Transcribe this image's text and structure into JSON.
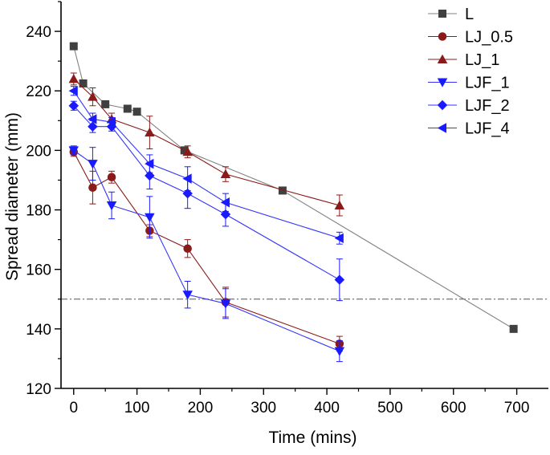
{
  "chart_data": {
    "type": "line",
    "title": "",
    "xlabel": "Time (mins)",
    "ylabel": "Spread diameter (mm)",
    "xlim": [
      -20,
      750
    ],
    "ylim": [
      120,
      250
    ],
    "xticks": [
      0,
      100,
      200,
      300,
      400,
      500,
      600,
      700
    ],
    "yticks": [
      120,
      140,
      160,
      180,
      200,
      220,
      240
    ],
    "xtick_labels": [
      "0",
      "100",
      "200",
      "300",
      "400",
      "500",
      "600",
      "700"
    ],
    "ytick_labels": [
      "120",
      "140",
      "160",
      "180",
      "200",
      "220",
      "240"
    ],
    "grid": false,
    "legend_position": "top-right",
    "reference_line": {
      "y": 150,
      "style": "dash-dot",
      "color": "#555555"
    },
    "series": [
      {
        "name": "L",
        "color": "#404040",
        "line_color": "#808080",
        "marker": "square",
        "x": [
          0,
          15,
          50,
          85,
          100,
          175,
          330,
          695
        ],
        "y": [
          235,
          222.5,
          215.5,
          214,
          213,
          200,
          186.5,
          140
        ],
        "err": [
          0,
          0,
          0,
          0,
          0,
          0,
          0,
          0
        ]
      },
      {
        "name": "LJ_0.5",
        "color": "#8B1A1A",
        "line_color": "#8B1A1A",
        "marker": "circle",
        "x": [
          0,
          30,
          60,
          120,
          180,
          240,
          420
        ],
        "y": [
          199.5,
          187.5,
          191,
          173,
          167,
          149,
          135
        ],
        "err": [
          1.5,
          5.5,
          2,
          2,
          3,
          5,
          2.5
        ]
      },
      {
        "name": "LJ_1",
        "color": "#8B1A1A",
        "line_color": "#8B1A1A",
        "marker": "triangle-up",
        "x": [
          0,
          30,
          60,
          120,
          180,
          240,
          420
        ],
        "y": [
          224,
          218,
          210.5,
          206,
          199.5,
          192,
          181.5
        ],
        "err": [
          2,
          3,
          2,
          5.5,
          2,
          2.5,
          3.5
        ]
      },
      {
        "name": "LJF_1",
        "color": "#1A1AFF",
        "line_color": "#3333FF",
        "marker": "triangle-down",
        "x": [
          0,
          30,
          60,
          120,
          180,
          240,
          420
        ],
        "y": [
          200,
          195.5,
          181.5,
          177.5,
          151.5,
          148.5,
          132.5
        ],
        "err": [
          1.5,
          5.5,
          4.5,
          7,
          4.5,
          5,
          3.5
        ]
      },
      {
        "name": "LJF_2",
        "color": "#1A1AFF",
        "line_color": "#3333FF",
        "marker": "diamond",
        "x": [
          0,
          30,
          60,
          120,
          180,
          240,
          420
        ],
        "y": [
          215,
          208,
          208,
          191.5,
          185.5,
          178.5,
          156.5
        ],
        "err": [
          1.5,
          2,
          1.5,
          4.5,
          5,
          4,
          7
        ]
      },
      {
        "name": "LJF_4",
        "color": "#1A1AFF",
        "line_color": "#3333FF",
        "marker": "triangle-left",
        "x": [
          0,
          30,
          60,
          120,
          180,
          240,
          420
        ],
        "y": [
          220,
          210.5,
          209.5,
          195.5,
          190.5,
          182.5,
          170.5
        ],
        "err": [
          1.5,
          2,
          1.5,
          3,
          4,
          3,
          2
        ]
      }
    ]
  }
}
